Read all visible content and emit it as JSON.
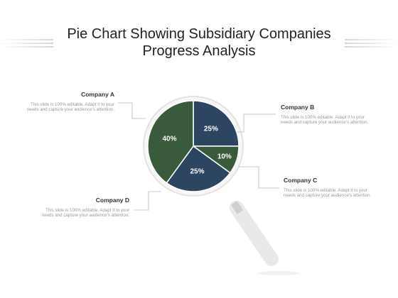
{
  "title_lines": [
    "Pie Chart Showing Subsidiary Companies",
    "Progress Analysis"
  ],
  "colors": {
    "company_a": "#3a5a3c",
    "company_b": "#2c4560",
    "company_c": "#3a5a3c",
    "company_d": "#2c4560",
    "lens_ring": "#e6e6e6",
    "handle": "#ededed",
    "connector": "#b8b8b8"
  },
  "icons": {
    "magnifier": "magnifying-glass-icon"
  },
  "callouts": [
    {
      "name": "Company A",
      "description": "This slide is 100% editable. Adapt it to your needs and capture your audience's attention."
    },
    {
      "name": "Company B",
      "description": "This slide is 100% editable. Adapt it to your needs and capture your audience's attention."
    },
    {
      "name": "Company C",
      "description": "This slide is 100% editable. Adapt it to your needs and capture your audience's attention."
    },
    {
      "name": "Company D",
      "description": "This slide is 100% editable. Adapt it to your needs and capture your audience's attention."
    }
  ],
  "chart_data": {
    "type": "pie",
    "title": "Pie Chart Showing Subsidiary Companies Progress Analysis",
    "categories": [
      "Company A",
      "Company B",
      "Company C",
      "Company D"
    ],
    "values": [
      40,
      25,
      10,
      25
    ],
    "labels": [
      "40%",
      "25%",
      "10%",
      "25%"
    ],
    "legend": "callouts"
  }
}
